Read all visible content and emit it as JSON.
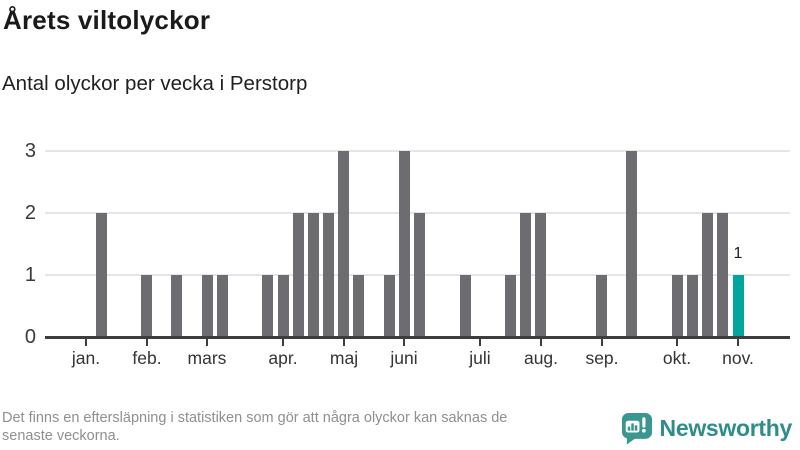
{
  "header": {
    "title": "Årets viltolyckor",
    "subtitle": "Antal olyckor per vecka i Perstorp"
  },
  "chart_data": {
    "type": "bar",
    "title": "Årets viltolyckor",
    "subtitle": "Antal olyckor per vecka i Perstorp",
    "x_unit": "week-of-year",
    "weeks": [
      1,
      2,
      3,
      4,
      5,
      6,
      7,
      8,
      9,
      10,
      11,
      12,
      13,
      14,
      15,
      16,
      17,
      18,
      19,
      20,
      21,
      22,
      23,
      24,
      25,
      26,
      27,
      28,
      29,
      30,
      31,
      32,
      33,
      34,
      35,
      36,
      37,
      38,
      39,
      40,
      41,
      42,
      43,
      44
    ],
    "values": [
      0,
      2,
      0,
      0,
      1,
      0,
      1,
      0,
      1,
      1,
      0,
      0,
      1,
      1,
      2,
      2,
      2,
      3,
      1,
      0,
      1,
      3,
      2,
      0,
      0,
      1,
      0,
      0,
      1,
      2,
      2,
      0,
      0,
      0,
      1,
      0,
      3,
      0,
      0,
      1,
      1,
      2,
      2,
      1
    ],
    "highlight_last": true,
    "highlight_label": "1",
    "month_ticks": [
      {
        "label": "jan.",
        "week": 1
      },
      {
        "label": "feb.",
        "week": 5
      },
      {
        "label": "mars",
        "week": 9
      },
      {
        "label": "apr.",
        "week": 14
      },
      {
        "label": "maj",
        "week": 18
      },
      {
        "label": "juni",
        "week": 22
      },
      {
        "label": "juli",
        "week": 27
      },
      {
        "label": "aug.",
        "week": 31
      },
      {
        "label": "sep.",
        "week": 35
      },
      {
        "label": "okt.",
        "week": 40
      },
      {
        "label": "nov.",
        "week": 44
      }
    ],
    "yticks": [
      0,
      1,
      2,
      3
    ],
    "ylim": [
      0,
      3
    ],
    "grid": "horizontal",
    "legend": "none",
    "colors": {
      "bar": "#6c6c71",
      "highlight": "#00a69d",
      "gridline": "#e5e5e7",
      "axis": "#3d3d3f"
    }
  },
  "footer": {
    "note_lines": [
      "Det finns en eftersläpning i statistiken som gör att några olyckor kan saknas de",
      "senaste veckorna."
    ],
    "brand": "Newsworthy",
    "brand_color": "#2e8d8a"
  },
  "icons": {
    "brand_logo": "speech-bubble-bar-chart-icon"
  }
}
